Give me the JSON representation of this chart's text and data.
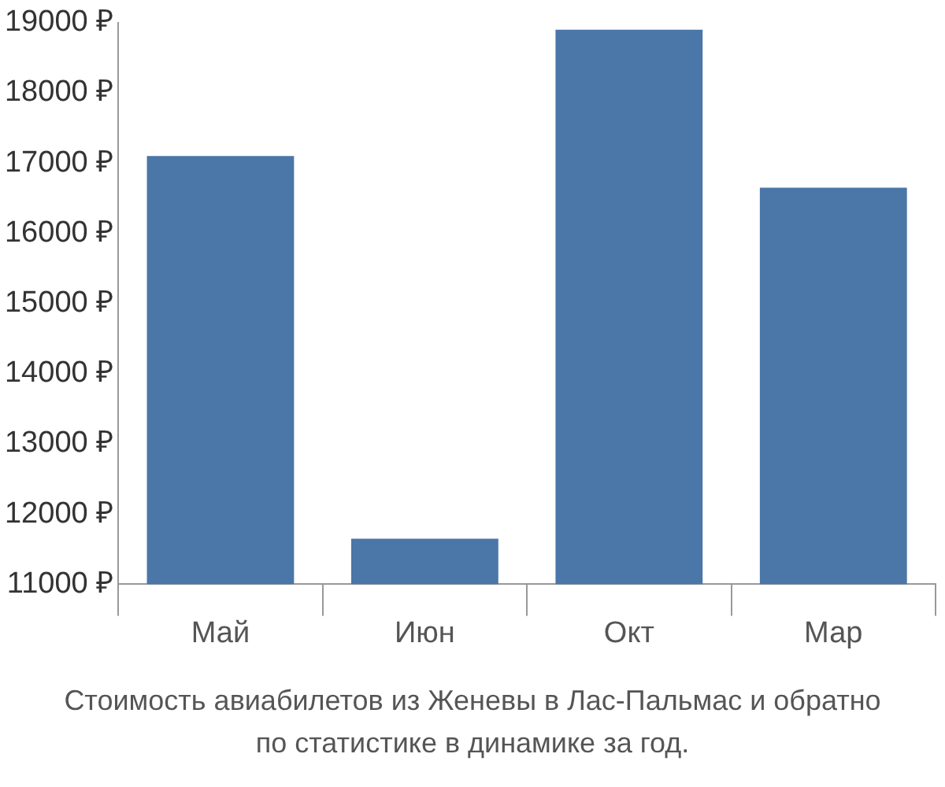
{
  "chart_data": {
    "type": "bar",
    "categories": [
      "Май",
      "Июн",
      "Окт",
      "Мар"
    ],
    "values": [
      17100,
      11650,
      18900,
      16650
    ],
    "color": "#4a76a8",
    "ylim": [
      11000,
      19000
    ],
    "yticks": [
      {
        "value": 11000,
        "label": "11000 ₽"
      },
      {
        "value": 12000,
        "label": "12000 ₽"
      },
      {
        "value": 13000,
        "label": "13000 ₽"
      },
      {
        "value": 14000,
        "label": "14000 ₽"
      },
      {
        "value": 15000,
        "label": "15000 ₽"
      },
      {
        "value": 16000,
        "label": "16000 ₽"
      },
      {
        "value": 17000,
        "label": "17000 ₽"
      },
      {
        "value": 18000,
        "label": "18000 ₽"
      },
      {
        "value": 19000,
        "label": "19000 ₽"
      }
    ],
    "annotations": [
      "Стоимость авиабилетов из Женевы в Лас-Пальмас и обратно",
      "по статистике в динамике за год."
    ]
  }
}
